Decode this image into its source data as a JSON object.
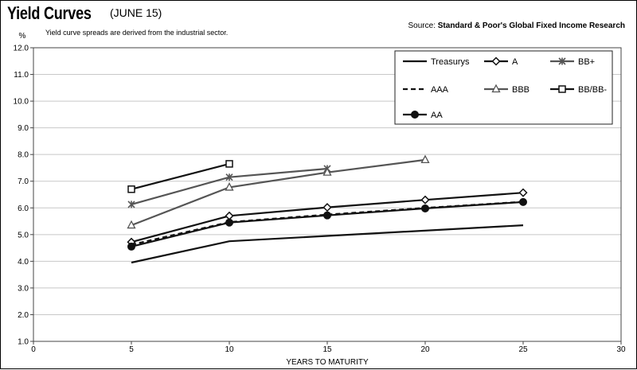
{
  "header": {
    "title": "Yield Curves",
    "date": "(JUNE 15)",
    "source_prefix": "Source: ",
    "source_name": "Standard & Poor's Global Fixed Income Research",
    "note": "Yield curve spreads are derived from the industrial sector."
  },
  "chart_data": {
    "type": "line",
    "title": "Yield Curves (JUNE 15)",
    "xlabel": "YEARS TO MATURITY",
    "ylabel": "%",
    "xlim": [
      0,
      30
    ],
    "ylim": [
      1.0,
      12.0
    ],
    "xticks": [
      0,
      5,
      10,
      15,
      20,
      25,
      30
    ],
    "yticks": [
      "1.0",
      "2.0",
      "3.0",
      "4.0",
      "5.0",
      "6.0",
      "7.0",
      "8.0",
      "9.0",
      "10.0",
      "11.0",
      "12.0"
    ],
    "grid": "horizontal",
    "legend_position": "top-right",
    "series": [
      {
        "name": "Treasurys",
        "marker": "none",
        "dash": "solid",
        "color": "#111111",
        "x": [
          5,
          10,
          25
        ],
        "y": [
          3.95,
          4.75,
          5.35
        ]
      },
      {
        "name": "A",
        "marker": "diamond",
        "dash": "solid",
        "color": "#111111",
        "x": [
          5,
          10,
          15,
          20,
          25
        ],
        "y": [
          4.72,
          5.7,
          6.02,
          6.3,
          6.57
        ]
      },
      {
        "name": "BB+",
        "marker": "star",
        "dash": "solid",
        "color": "#555555",
        "x": [
          5,
          10,
          15
        ],
        "y": [
          6.13,
          7.15,
          7.47
        ]
      },
      {
        "name": "AAA",
        "marker": "none",
        "dash": "dashed",
        "color": "#111111",
        "x": [
          5,
          10,
          15,
          20,
          25
        ],
        "y": [
          4.62,
          5.47,
          5.75,
          6.0,
          6.23
        ]
      },
      {
        "name": "BBB",
        "marker": "triangle",
        "dash": "solid",
        "color": "#555555",
        "x": [
          5,
          10,
          15,
          20
        ],
        "y": [
          5.35,
          6.77,
          7.33,
          7.8
        ]
      },
      {
        "name": "BB/BB-",
        "marker": "square",
        "dash": "solid",
        "color": "#111111",
        "x": [
          5,
          10
        ],
        "y": [
          6.7,
          7.65
        ]
      },
      {
        "name": "AA",
        "marker": "circle",
        "dash": "solid",
        "color": "#111111",
        "x": [
          5,
          10,
          15,
          20,
          25
        ],
        "y": [
          4.55,
          5.45,
          5.72,
          5.98,
          6.22
        ]
      }
    ]
  }
}
